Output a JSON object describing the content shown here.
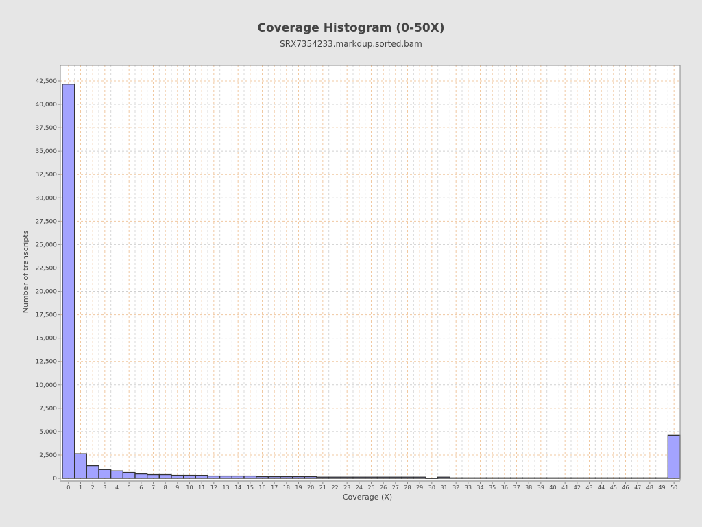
{
  "chart_data": {
    "type": "bar",
    "title": "Coverage Histogram (0-50X)",
    "subtitle": "SRX7354233.markdup.sorted.bam",
    "xlabel": "Coverage (X)",
    "ylabel": "Number of transcripts",
    "ylim": [
      0,
      44300
    ],
    "yticks": [
      0,
      2500,
      5000,
      7500,
      10000,
      12500,
      15000,
      17500,
      20000,
      22500,
      25000,
      27500,
      30000,
      32500,
      35000,
      37500,
      40000,
      42500
    ],
    "grid": true,
    "bar_color": "#a3a3ff",
    "categories": [
      0,
      1,
      2,
      3,
      4,
      5,
      6,
      7,
      8,
      9,
      10,
      11,
      12,
      13,
      14,
      15,
      16,
      17,
      18,
      19,
      20,
      21,
      22,
      23,
      24,
      25,
      26,
      27,
      28,
      29,
      30,
      31,
      32,
      33,
      34,
      35,
      36,
      37,
      38,
      39,
      40,
      41,
      42,
      43,
      44,
      45,
      46,
      47,
      48,
      49,
      50
    ],
    "values": [
      42150,
      2630,
      1350,
      930,
      790,
      620,
      470,
      400,
      400,
      325,
      325,
      320,
      250,
      250,
      250,
      250,
      180,
      180,
      180,
      180,
      180,
      130,
      130,
      130,
      130,
      130,
      130,
      130,
      130,
      130,
      20,
      130,
      50,
      50,
      50,
      50,
      50,
      50,
      50,
      50,
      50,
      50,
      50,
      50,
      50,
      50,
      50,
      50,
      50,
      50,
      4600
    ]
  }
}
